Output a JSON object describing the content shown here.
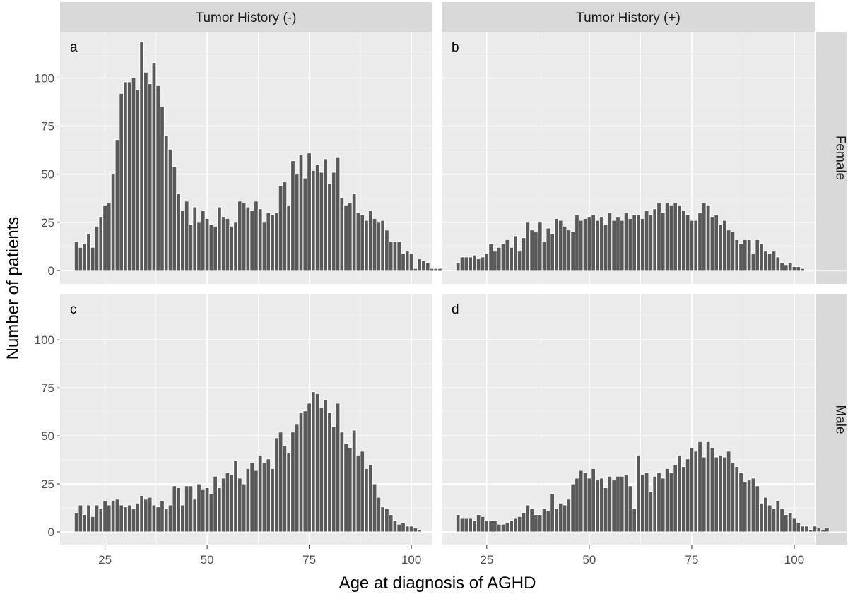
{
  "chart_data": {
    "type": "bar",
    "xlabel": "Age at diagnosis of AGHD",
    "ylabel": "Number of patients",
    "xlim": [
      14,
      105
    ],
    "ylim": [
      -7,
      124
    ],
    "xticks": [
      25,
      50,
      75,
      100
    ],
    "yticks": [
      0,
      25,
      50,
      75,
      100
    ],
    "col_strips": [
      "Tumor History (-)",
      "Tumor History (+)"
    ],
    "row_strips": [
      "Female",
      "Male"
    ],
    "grid": true,
    "colors": {
      "bar_fill": "#595959",
      "bar_outline": "#ffffff",
      "panel_bg": "#ebebeb",
      "strip_bg": "#d9d9d9",
      "grid": "#ffffff"
    },
    "panels": [
      {
        "tag": "a",
        "col": 0,
        "row": 0,
        "x_start": 18,
        "values": [
          15,
          12,
          14,
          19,
          12,
          23,
          28,
          34,
          35,
          50,
          68,
          92,
          98,
          98,
          100,
          94,
          119,
          103,
          97,
          108,
          96,
          85,
          70,
          63,
          54,
          40,
          31,
          36,
          24,
          33,
          25,
          31,
          27,
          24,
          23,
          33,
          28,
          27,
          23,
          25,
          36,
          35,
          33,
          31,
          36,
          32,
          25,
          30,
          29,
          30,
          44,
          46,
          34,
          57,
          50,
          60,
          48,
          61,
          52,
          55,
          51,
          58,
          45,
          51,
          59,
          38,
          34,
          35,
          40,
          30,
          29,
          26,
          31,
          27,
          25,
          26,
          21,
          15,
          15,
          15,
          9,
          10,
          9,
          1,
          6,
          5,
          4,
          1,
          1,
          1,
          1,
          1,
          1,
          1,
          1,
          1,
          1,
          1,
          1,
          1,
          1,
          1,
          1
        ]
      },
      {
        "tag": "b",
        "col": 1,
        "row": 0,
        "x_start": 18,
        "values": [
          4,
          7,
          7,
          7,
          8,
          6,
          7,
          9,
          14,
          10,
          12,
          14,
          16,
          12,
          18,
          10,
          17,
          25,
          21,
          20,
          25,
          15,
          22,
          19,
          27,
          26,
          23,
          21,
          20,
          29,
          26,
          27,
          28,
          29,
          26,
          28,
          24,
          30,
          26,
          28,
          26,
          30,
          27,
          29,
          29,
          27,
          31,
          29,
          32,
          35,
          30,
          35,
          34,
          35,
          34,
          31,
          29,
          26,
          26,
          30,
          35,
          34,
          28,
          29,
          24,
          26,
          21,
          20,
          16,
          14,
          16,
          16,
          9,
          16,
          14,
          10,
          9,
          10,
          7,
          4,
          3,
          4,
          2,
          2,
          1,
          0,
          0,
          0,
          0,
          0,
          0,
          0,
          0,
          0,
          0,
          0,
          0,
          0,
          0,
          0,
          0,
          0,
          0
        ]
      },
      {
        "tag": "c",
        "col": 0,
        "row": 1,
        "x_start": 18,
        "values": [
          10,
          14,
          9,
          14,
          8,
          14,
          12,
          16,
          14,
          16,
          17,
          14,
          13,
          14,
          12,
          15,
          19,
          17,
          18,
          14,
          13,
          16,
          12,
          14,
          24,
          23,
          14,
          24,
          24,
          17,
          25,
          22,
          23,
          20,
          29,
          23,
          28,
          31,
          30,
          37,
          28,
          25,
          33,
          36,
          32,
          40,
          36,
          38,
          33,
          49,
          52,
          45,
          41,
          52,
          56,
          62,
          63,
          67,
          73,
          72,
          65,
          69,
          62,
          55,
          67,
          52,
          46,
          44,
          53,
          40,
          42,
          33,
          35,
          25,
          18,
          13,
          12,
          9,
          6,
          4,
          5,
          3,
          3,
          2,
          1,
          0,
          0,
          0,
          0,
          0,
          0,
          0,
          0,
          0,
          0,
          0,
          0,
          0,
          0,
          0,
          0,
          0,
          0
        ]
      },
      {
        "tag": "d",
        "col": 1,
        "row": 1,
        "x_start": 18,
        "values": [
          9,
          7,
          7,
          7,
          6,
          9,
          8,
          6,
          6,
          6,
          4,
          4,
          5,
          6,
          7,
          8,
          10,
          14,
          12,
          9,
          9,
          12,
          11,
          20,
          12,
          15,
          14,
          17,
          25,
          28,
          32,
          31,
          28,
          33,
          27,
          28,
          23,
          29,
          27,
          29,
          29,
          30,
          24,
          12,
          40,
          30,
          31,
          21,
          29,
          31,
          28,
          33,
          31,
          35,
          40,
          34,
          38,
          44,
          42,
          47,
          39,
          47,
          44,
          39,
          40,
          39,
          42,
          36,
          34,
          31,
          26,
          27,
          28,
          24,
          15,
          18,
          14,
          12,
          16,
          12,
          9,
          10,
          7,
          5,
          3,
          3,
          1,
          3,
          2,
          1,
          2,
          0,
          0,
          0,
          0,
          0,
          0,
          0,
          0,
          0,
          0,
          0,
          0
        ]
      }
    ]
  }
}
